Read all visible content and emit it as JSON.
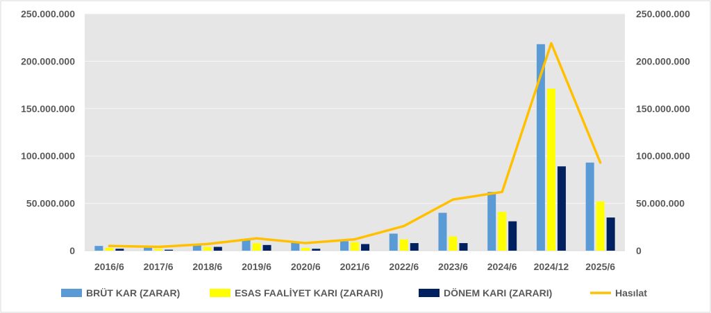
{
  "chart_data": {
    "type": "bar",
    "categories": [
      "2016/6",
      "2017/6",
      "2018/6",
      "2019/6",
      "2020/6",
      "2021/6",
      "2022/6",
      "2023/6",
      "2024/6",
      "2024/12",
      "2025/6"
    ],
    "series": [
      {
        "name": "BRÜT KAR (ZARAR)",
        "type": "bar",
        "color": "#5b9bd5",
        "values": [
          5000000,
          4000000,
          6000000,
          11000000,
          9000000,
          10000000,
          18000000,
          40000000,
          62000000,
          218000000,
          93000000
        ]
      },
      {
        "name": "ESAS FAALİYET KARI (ZARARI)",
        "type": "bar",
        "color": "#ffff00",
        "values": [
          3000000,
          2000000,
          4000000,
          8000000,
          3000000,
          9000000,
          12000000,
          15000000,
          41000000,
          171000000,
          52000000
        ]
      },
      {
        "name": "DÖNEM KARI (ZARARI)",
        "type": "bar",
        "color": "#002060",
        "values": [
          2000000,
          1000000,
          4000000,
          6000000,
          2000000,
          7000000,
          8000000,
          8000000,
          31000000,
          89000000,
          35000000
        ]
      },
      {
        "name": "Hasılat",
        "type": "line",
        "color": "#ffc000",
        "values": [
          5000000,
          4000000,
          7000000,
          13000000,
          8000000,
          12000000,
          26000000,
          54000000,
          62000000,
          219000000,
          93000000
        ]
      }
    ],
    "ylim": [
      0,
      250000000
    ],
    "yticks": [
      "0",
      "50.000.000",
      "100.000.000",
      "150.000.000",
      "200.000.000",
      "250.000.000"
    ],
    "secondary_yticks": [
      "0",
      "50.000.000",
      "100.000.000",
      "150.000.000",
      "200.000.000",
      "250.000.000"
    ],
    "grid": true,
    "legend_position": "bottom",
    "plot_background": "#e7e6e6"
  }
}
